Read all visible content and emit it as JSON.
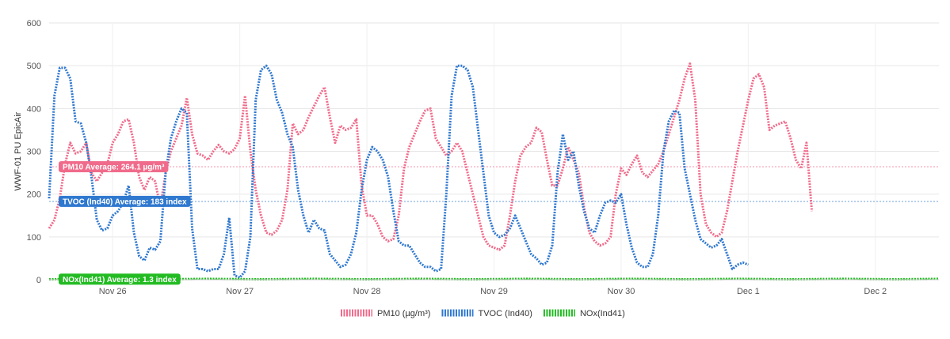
{
  "chart_data": {
    "type": "line",
    "ylabel": "WWF-01 PU EpicAir",
    "ylim": [
      0,
      600
    ],
    "yticks": [
      0,
      100,
      200,
      300,
      400,
      500,
      600
    ],
    "xlim": [
      0,
      168
    ],
    "x_ticks": [
      {
        "x": 12,
        "label": "Nov 26"
      },
      {
        "x": 36,
        "label": "Nov 27"
      },
      {
        "x": 60,
        "label": "Nov 28"
      },
      {
        "x": 84,
        "label": "Nov 29"
      },
      {
        "x": 108,
        "label": "Nov 30"
      },
      {
        "x": 132,
        "label": "Dec 1"
      },
      {
        "x": 156,
        "label": "Dec 2"
      }
    ],
    "grid": true,
    "legend_position": "bottom",
    "series": [
      {
        "name": "PM10 (µg/m³)",
        "color": "#f06b8b",
        "average": 264.1,
        "average_label": "PM10 Average: 264.1 µg/m³",
        "points": [
          [
            0,
            120
          ],
          [
            1,
            140
          ],
          [
            2,
            190
          ],
          [
            3,
            270
          ],
          [
            4,
            320
          ],
          [
            5,
            295
          ],
          [
            6,
            300
          ],
          [
            7,
            320
          ],
          [
            8,
            250
          ],
          [
            9,
            230
          ],
          [
            10,
            250
          ],
          [
            11,
            270
          ],
          [
            12,
            320
          ],
          [
            13,
            340
          ],
          [
            14,
            370
          ],
          [
            15,
            375
          ],
          [
            16,
            320
          ],
          [
            17,
            240
          ],
          [
            18,
            210
          ],
          [
            19,
            240
          ],
          [
            20,
            230
          ],
          [
            21,
            170
          ],
          [
            22,
            250
          ],
          [
            23,
            300
          ],
          [
            24,
            330
          ],
          [
            25,
            360
          ],
          [
            26,
            425
          ],
          [
            27,
            340
          ],
          [
            28,
            295
          ],
          [
            29,
            290
          ],
          [
            30,
            280
          ],
          [
            31,
            300
          ],
          [
            32,
            315
          ],
          [
            33,
            300
          ],
          [
            34,
            295
          ],
          [
            35,
            305
          ],
          [
            36,
            330
          ],
          [
            37,
            430
          ],
          [
            38,
            300
          ],
          [
            39,
            210
          ],
          [
            40,
            150
          ],
          [
            41,
            110
          ],
          [
            42,
            105
          ],
          [
            43,
            115
          ],
          [
            44,
            140
          ],
          [
            45,
            210
          ],
          [
            46,
            365
          ],
          [
            47,
            340
          ],
          [
            48,
            350
          ],
          [
            49,
            380
          ],
          [
            50,
            405
          ],
          [
            51,
            430
          ],
          [
            52,
            450
          ],
          [
            53,
            380
          ],
          [
            54,
            320
          ],
          [
            55,
            360
          ],
          [
            56,
            350
          ],
          [
            57,
            355
          ],
          [
            58,
            375
          ],
          [
            59,
            220
          ],
          [
            60,
            150
          ],
          [
            61,
            150
          ],
          [
            62,
            130
          ],
          [
            63,
            100
          ],
          [
            64,
            90
          ],
          [
            65,
            95
          ],
          [
            66,
            150
          ],
          [
            67,
            260
          ],
          [
            68,
            310
          ],
          [
            69,
            340
          ],
          [
            70,
            370
          ],
          [
            71,
            395
          ],
          [
            72,
            400
          ],
          [
            73,
            330
          ],
          [
            74,
            310
          ],
          [
            75,
            290
          ],
          [
            76,
            300
          ],
          [
            77,
            320
          ],
          [
            78,
            300
          ],
          [
            79,
            250
          ],
          [
            80,
            200
          ],
          [
            81,
            150
          ],
          [
            82,
            100
          ],
          [
            83,
            80
          ],
          [
            84,
            75
          ],
          [
            85,
            70
          ],
          [
            86,
            80
          ],
          [
            87,
            150
          ],
          [
            88,
            230
          ],
          [
            89,
            290
          ],
          [
            90,
            310
          ],
          [
            91,
            320
          ],
          [
            92,
            355
          ],
          [
            93,
            345
          ],
          [
            94,
            280
          ],
          [
            95,
            220
          ],
          [
            96,
            220
          ],
          [
            97,
            260
          ],
          [
            98,
            310
          ],
          [
            99,
            280
          ],
          [
            100,
            250
          ],
          [
            101,
            170
          ],
          [
            102,
            110
          ],
          [
            103,
            90
          ],
          [
            104,
            80
          ],
          [
            105,
            85
          ],
          [
            106,
            100
          ],
          [
            107,
            200
          ],
          [
            108,
            260
          ],
          [
            109,
            245
          ],
          [
            110,
            270
          ],
          [
            111,
            290
          ],
          [
            112,
            250
          ],
          [
            113,
            240
          ],
          [
            114,
            255
          ],
          [
            115,
            270
          ],
          [
            116,
            300
          ],
          [
            117,
            340
          ],
          [
            118,
            380
          ],
          [
            119,
            420
          ],
          [
            120,
            470
          ],
          [
            121,
            505
          ],
          [
            122,
            420
          ],
          [
            123,
            200
          ],
          [
            124,
            130
          ],
          [
            125,
            110
          ],
          [
            126,
            100
          ],
          [
            127,
            110
          ],
          [
            128,
            160
          ],
          [
            129,
            230
          ],
          [
            130,
            300
          ],
          [
            131,
            360
          ],
          [
            132,
            420
          ],
          [
            133,
            470
          ],
          [
            134,
            480
          ],
          [
            135,
            450
          ],
          [
            136,
            350
          ],
          [
            137,
            360
          ],
          [
            138,
            365
          ],
          [
            139,
            370
          ],
          [
            140,
            330
          ],
          [
            141,
            280
          ],
          [
            142,
            260
          ],
          [
            143,
            320
          ],
          [
            144,
            160
          ]
        ]
      },
      {
        "name": "TVOC (Ind40)",
        "color": "#2f78cf",
        "average": 183,
        "average_label": "TVOC (Ind40) Average: 183 index",
        "points": [
          [
            0,
            190
          ],
          [
            1,
            430
          ],
          [
            2,
            495
          ],
          [
            3,
            495
          ],
          [
            4,
            470
          ],
          [
            5,
            370
          ],
          [
            6,
            365
          ],
          [
            7,
            320
          ],
          [
            8,
            240
          ],
          [
            9,
            140
          ],
          [
            10,
            115
          ],
          [
            11,
            120
          ],
          [
            12,
            150
          ],
          [
            13,
            160
          ],
          [
            14,
            180
          ],
          [
            15,
            220
          ],
          [
            16,
            110
          ],
          [
            17,
            55
          ],
          [
            18,
            45
          ],
          [
            19,
            75
          ],
          [
            20,
            70
          ],
          [
            21,
            90
          ],
          [
            22,
            250
          ],
          [
            23,
            330
          ],
          [
            24,
            370
          ],
          [
            25,
            400
          ],
          [
            26,
            390
          ],
          [
            27,
            120
          ],
          [
            28,
            25
          ],
          [
            29,
            25
          ],
          [
            30,
            20
          ],
          [
            31,
            25
          ],
          [
            32,
            25
          ],
          [
            33,
            60
          ],
          [
            34,
            145
          ],
          [
            35,
            10
          ],
          [
            36,
            5
          ],
          [
            37,
            20
          ],
          [
            38,
            100
          ],
          [
            39,
            420
          ],
          [
            40,
            490
          ],
          [
            41,
            500
          ],
          [
            42,
            480
          ],
          [
            43,
            420
          ],
          [
            44,
            390
          ],
          [
            45,
            340
          ],
          [
            46,
            310
          ],
          [
            47,
            210
          ],
          [
            48,
            150
          ],
          [
            49,
            110
          ],
          [
            50,
            140
          ],
          [
            51,
            120
          ],
          [
            52,
            115
          ],
          [
            53,
            60
          ],
          [
            54,
            45
          ],
          [
            55,
            30
          ],
          [
            56,
            35
          ],
          [
            57,
            60
          ],
          [
            58,
            110
          ],
          [
            59,
            210
          ],
          [
            60,
            280
          ],
          [
            61,
            310
          ],
          [
            62,
            300
          ],
          [
            63,
            280
          ],
          [
            64,
            240
          ],
          [
            65,
            160
          ],
          [
            66,
            90
          ],
          [
            67,
            80
          ],
          [
            68,
            80
          ],
          [
            69,
            60
          ],
          [
            70,
            40
          ],
          [
            71,
            30
          ],
          [
            72,
            30
          ],
          [
            73,
            20
          ],
          [
            74,
            25
          ],
          [
            75,
            200
          ],
          [
            76,
            430
          ],
          [
            77,
            500
          ],
          [
            78,
            500
          ],
          [
            79,
            490
          ],
          [
            80,
            450
          ],
          [
            81,
            350
          ],
          [
            82,
            250
          ],
          [
            83,
            150
          ],
          [
            84,
            110
          ],
          [
            85,
            100
          ],
          [
            86,
            105
          ],
          [
            87,
            120
          ],
          [
            88,
            150
          ],
          [
            89,
            120
          ],
          [
            90,
            90
          ],
          [
            91,
            60
          ],
          [
            92,
            50
          ],
          [
            93,
            35
          ],
          [
            94,
            40
          ],
          [
            95,
            80
          ],
          [
            96,
            250
          ],
          [
            97,
            340
          ],
          [
            98,
            280
          ],
          [
            99,
            300
          ],
          [
            100,
            220
          ],
          [
            101,
            160
          ],
          [
            102,
            120
          ],
          [
            103,
            110
          ],
          [
            104,
            150
          ],
          [
            105,
            180
          ],
          [
            106,
            185
          ],
          [
            107,
            180
          ],
          [
            108,
            200
          ],
          [
            109,
            130
          ],
          [
            110,
            75
          ],
          [
            111,
            40
          ],
          [
            112,
            30
          ],
          [
            113,
            30
          ],
          [
            114,
            60
          ],
          [
            115,
            150
          ],
          [
            116,
            300
          ],
          [
            117,
            370
          ],
          [
            118,
            395
          ],
          [
            119,
            390
          ],
          [
            120,
            260
          ],
          [
            121,
            200
          ],
          [
            122,
            140
          ],
          [
            123,
            95
          ],
          [
            124,
            85
          ],
          [
            125,
            75
          ],
          [
            126,
            80
          ],
          [
            127,
            95
          ],
          [
            128,
            60
          ],
          [
            129,
            25
          ],
          [
            130,
            35
          ],
          [
            131,
            40
          ],
          [
            132,
            35
          ]
        ]
      },
      {
        "name": "NOx(Ind41)",
        "color": "#22bb22",
        "average": 1.3,
        "average_label": "NOx(Ind41) Average: 1.3 index",
        "points": [
          [
            0,
            1
          ],
          [
            10,
            2
          ],
          [
            20,
            1
          ],
          [
            30,
            2
          ],
          [
            40,
            1
          ],
          [
            50,
            2
          ],
          [
            60,
            1
          ],
          [
            70,
            2
          ],
          [
            80,
            1
          ],
          [
            90,
            2
          ],
          [
            100,
            1
          ],
          [
            110,
            2
          ],
          [
            120,
            1
          ],
          [
            130,
            2
          ],
          [
            140,
            1
          ],
          [
            150,
            2
          ],
          [
            160,
            1
          ],
          [
            168,
            2
          ]
        ]
      }
    ]
  }
}
